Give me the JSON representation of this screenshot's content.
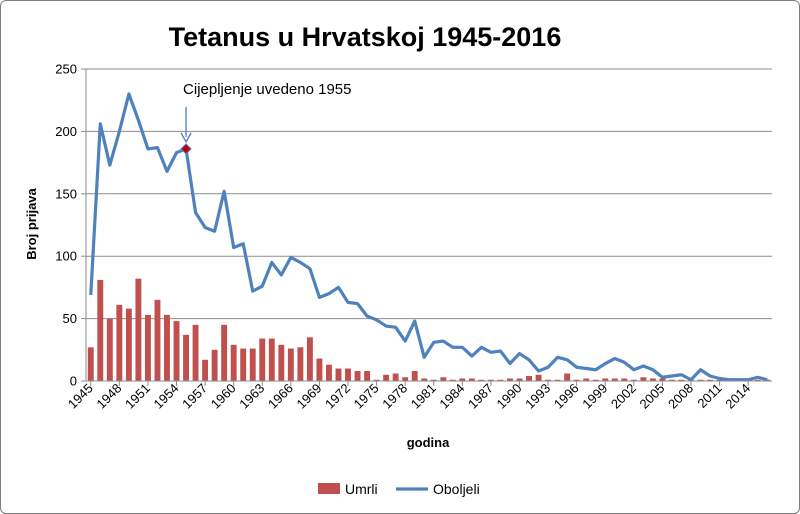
{
  "chart_data": {
    "type": "bar+line",
    "title": "Tetanus u Hrvatskoj 1945-2016",
    "xlabel": "godina",
    "ylabel": "Broj prijava",
    "ylim": [
      0,
      250
    ],
    "yticks": [
      0,
      50,
      100,
      150,
      200,
      250
    ],
    "grid": true,
    "legend_position": "bottom",
    "x": [
      1945,
      1946,
      1947,
      1948,
      1949,
      1950,
      1951,
      1952,
      1953,
      1954,
      1955,
      1956,
      1957,
      1958,
      1959,
      1960,
      1961,
      1962,
      1963,
      1964,
      1965,
      1966,
      1967,
      1968,
      1969,
      1970,
      1971,
      1972,
      1973,
      1974,
      1975,
      1976,
      1977,
      1978,
      1979,
      1980,
      1981,
      1982,
      1983,
      1984,
      1985,
      1986,
      1987,
      1988,
      1989,
      1990,
      1991,
      1992,
      1993,
      1994,
      1995,
      1996,
      1997,
      1998,
      1999,
      2000,
      2001,
      2002,
      2003,
      2004,
      2005,
      2006,
      2007,
      2008,
      2009,
      2010,
      2011,
      2012,
      2013,
      2014,
      2015,
      2016
    ],
    "xtick_labels": [
      "1945",
      "1948",
      "1951",
      "1954",
      "1957",
      "1960",
      "1963",
      "1966",
      "1969",
      "1972",
      "1975",
      "1978",
      "1981",
      "1984",
      "1987",
      "1990",
      "1993",
      "1996",
      "1999",
      "2002",
      "2005",
      "2008",
      "2011",
      "2014"
    ],
    "series": [
      {
        "name": "Umrli",
        "kind": "bar",
        "color": "#c0504d",
        "values": [
          27,
          81,
          50,
          61,
          58,
          82,
          53,
          65,
          53,
          48,
          37,
          45,
          17,
          25,
          45,
          29,
          26,
          26,
          34,
          34,
          29,
          26,
          27,
          35,
          18,
          13,
          10,
          10,
          8,
          8,
          1,
          5,
          6,
          3,
          8,
          2,
          1,
          3,
          1,
          2,
          2,
          1,
          1,
          1,
          2,
          2,
          4,
          5,
          1,
          1,
          6,
          1,
          2,
          1,
          2,
          2,
          2,
          1,
          3,
          2,
          2,
          1,
          1,
          1,
          1,
          1,
          1,
          1,
          1,
          1,
          1,
          1
        ]
      },
      {
        "name": "Oboljeli",
        "kind": "line",
        "color": "#4f81bd",
        "values": [
          69,
          206,
          173,
          200,
          230,
          209,
          186,
          187,
          168,
          183,
          186,
          135,
          123,
          120,
          152,
          107,
          110,
          72,
          76,
          95,
          85,
          99,
          95,
          90,
          67,
          70,
          75,
          63,
          62,
          52,
          49,
          44,
          43,
          32,
          48,
          19,
          31,
          32,
          27,
          27,
          20,
          27,
          23,
          24,
          14,
          22,
          17,
          8,
          11,
          19,
          17,
          11,
          10,
          9,
          14,
          18,
          15,
          9,
          12,
          9,
          3,
          4,
          5,
          1,
          9,
          4,
          2,
          1,
          1,
          1,
          3,
          1
        ]
      }
    ],
    "annotations": [
      {
        "text": "Cijepljenje uvedeno 1955",
        "x": 1955,
        "y": 186,
        "marker_color": "#c00000"
      }
    ]
  }
}
